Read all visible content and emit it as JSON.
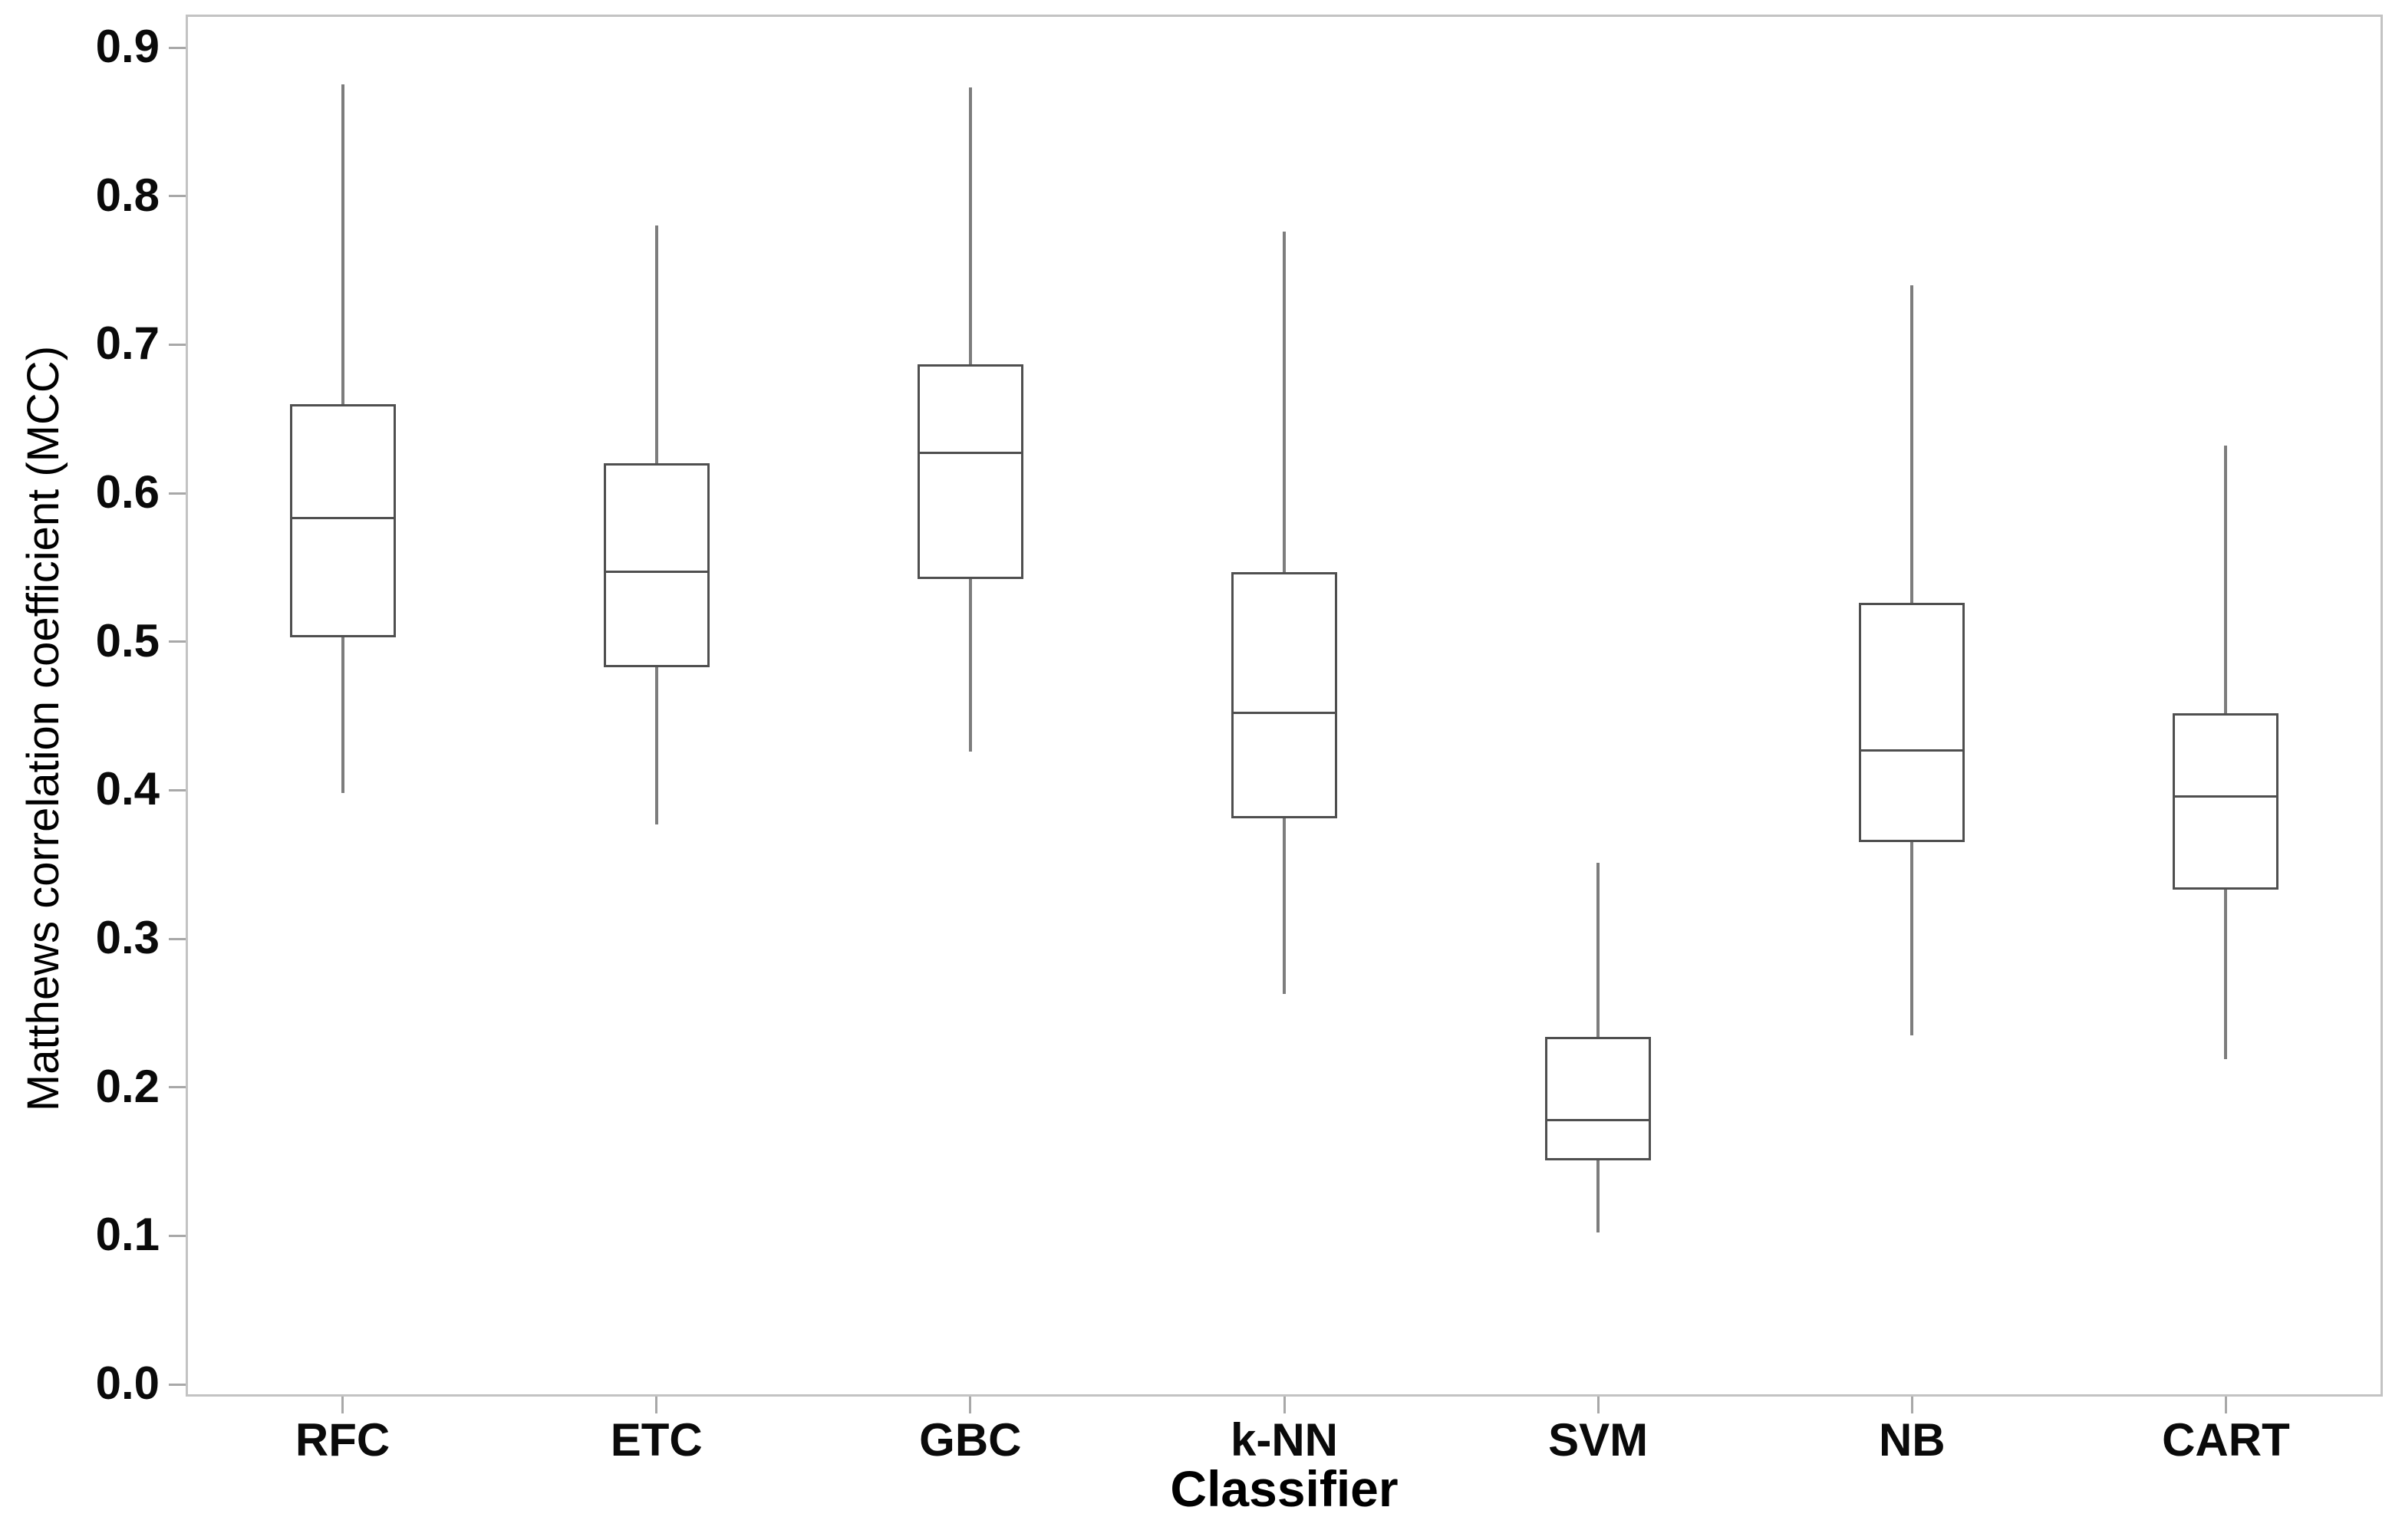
{
  "chart_data": {
    "type": "boxplot",
    "title": "",
    "xlabel": "Classifier",
    "ylabel": "Matthews correlation coefficient (MCC)",
    "categories": [
      "RFC",
      "ETC",
      "GBC",
      "k-NN",
      "SVM",
      "NB",
      "CART"
    ],
    "series": [
      {
        "name": "RFC",
        "whisker_low": 0.398,
        "q1": 0.503,
        "median": 0.583,
        "q3": 0.66,
        "whisker_high": 0.875
      },
      {
        "name": "ETC",
        "whisker_low": 0.377,
        "q1": 0.483,
        "median": 0.547,
        "q3": 0.62,
        "whisker_high": 0.78
      },
      {
        "name": "GBC",
        "whisker_low": 0.426,
        "q1": 0.542,
        "median": 0.627,
        "q3": 0.687,
        "whisker_high": 0.873
      },
      {
        "name": "k-NN",
        "whisker_low": 0.263,
        "q1": 0.381,
        "median": 0.452,
        "q3": 0.547,
        "whisker_high": 0.776
      },
      {
        "name": "SVM",
        "whisker_low": 0.102,
        "q1": 0.151,
        "median": 0.178,
        "q3": 0.234,
        "whisker_high": 0.351
      },
      {
        "name": "NB",
        "whisker_low": 0.235,
        "q1": 0.365,
        "median": 0.427,
        "q3": 0.526,
        "whisker_high": 0.74
      },
      {
        "name": "CART",
        "whisker_low": 0.219,
        "q1": 0.333,
        "median": 0.396,
        "q3": 0.452,
        "whisker_high": 0.632
      }
    ],
    "ylim": [
      0.0,
      0.9
    ],
    "ytick_labels": [
      "0.0",
      "0.1",
      "0.2",
      "0.3",
      "0.4",
      "0.5",
      "0.6",
      "0.7",
      "0.8",
      "0.9"
    ],
    "grid": false,
    "legend": null
  },
  "style": {
    "box_line_color": "#4f4f4f",
    "median_line_color": "#4f4f4f",
    "whisker_color": "#7d7d7d",
    "axis_border_color": "#c3c3c3",
    "tick_color": "#a8a8a8",
    "text_color": "#0a0a0a",
    "background": "#ffffff"
  }
}
